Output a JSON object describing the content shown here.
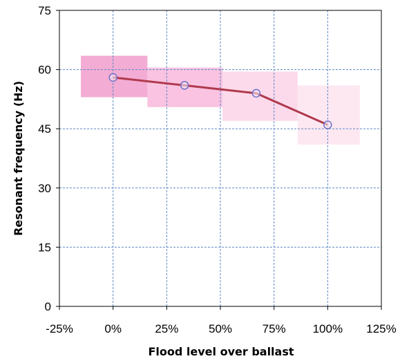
{
  "chart_data": {
    "type": "line",
    "title": "",
    "xlabel": "Flood level over ballast",
    "ylabel": "Resonant  frequency (Hz)",
    "xlim": [
      -25,
      125
    ],
    "ylim": [
      0,
      75
    ],
    "x_ticks": [
      -25,
      0,
      25,
      50,
      75,
      100,
      125
    ],
    "x_tick_labels": [
      "-25%",
      "0%",
      "25%",
      "50%",
      "75%",
      "100%",
      "125%"
    ],
    "y_ticks": [
      0,
      15,
      30,
      45,
      60,
      75
    ],
    "y_tick_labels": [
      "0",
      "15",
      "30",
      "45",
      "60",
      "75"
    ],
    "grid": true,
    "series": [
      {
        "x": [
          0,
          33.3,
          66.7,
          100
        ],
        "y": [
          58,
          56,
          54,
          46
        ],
        "color": "#b03a4e",
        "marker_color": "#7070c8"
      }
    ],
    "ranges": [
      {
        "x0": -15,
        "x1": 16,
        "y0": 53,
        "y1": 63.5,
        "color": "#f2a3cf",
        "opacity": 0.9
      },
      {
        "x0": 16,
        "x1": 51,
        "y0": 50.5,
        "y1": 60.5,
        "color": "#f8b9dc",
        "opacity": 0.85
      },
      {
        "x0": 51,
        "x1": 86,
        "y0": 47,
        "y1": 59.5,
        "color": "#fbd4e8",
        "opacity": 0.85
      },
      {
        "x0": 86,
        "x1": 115,
        "y0": 41,
        "y1": 56,
        "color": "#fde6f1",
        "opacity": 0.9
      }
    ],
    "colors": {
      "grid": "#5b86c4",
      "axis": "#000000"
    }
  }
}
